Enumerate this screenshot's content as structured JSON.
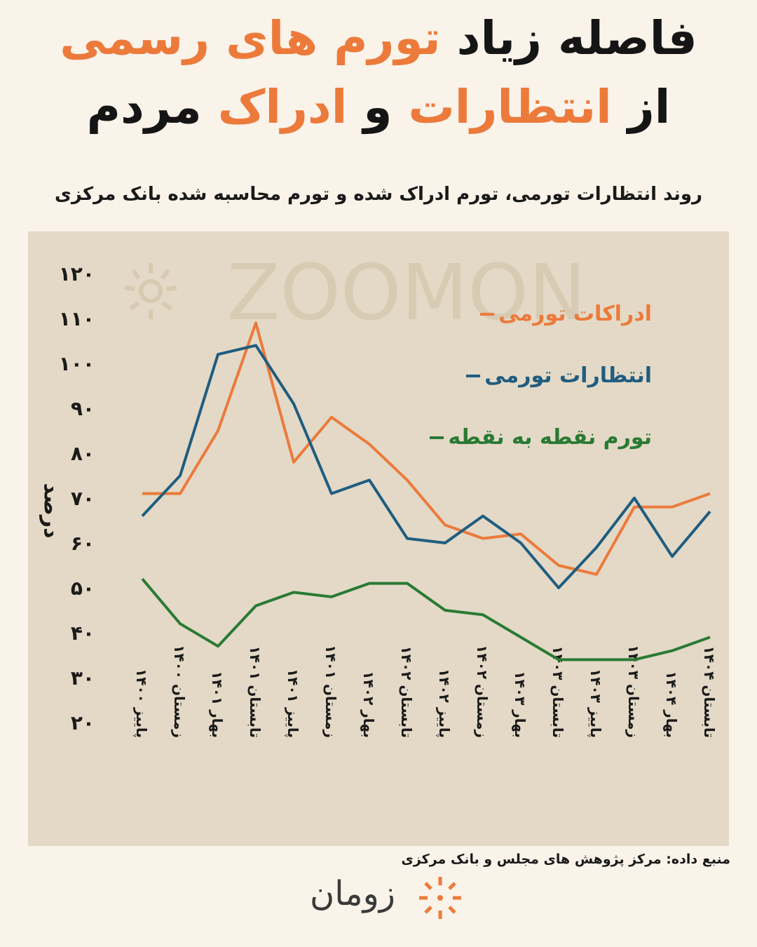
{
  "header": {
    "line1_part1": "فاصله زیاد",
    "line1_part2": "تورم های رسمی",
    "line2_part1": "از",
    "line2_part2": "انتظارات",
    "line2_part3": "و",
    "line2_part4": "ادراک",
    "line2_part5": "مردم"
  },
  "colors": {
    "accent": "#ec7a3b",
    "blue": "#1f5d80",
    "green": "#2a7a33",
    "panel": "#e3d9c6",
    "background": "#faf3ea"
  },
  "watermark_text": "ZOOMON",
  "source_text": "منبع داده: مرکز پژوهش های مجلس و بانک مرکزی",
  "brand_name": "زومان",
  "chart_data": {
    "type": "line",
    "title": "روند انتظارات تورمی، تورم ادراک شده و تورم محاسبه شده بانک مرکزی",
    "ylabel": "درصد",
    "xlabel": "",
    "ylim": [
      20,
      120
    ],
    "yticks": [
      "۲۰",
      "۳۰",
      "۴۰",
      "۵۰",
      "۶۰",
      "۷۰",
      "۸۰",
      "۹۰",
      "۱۰۰",
      "۱۱۰",
      "۱۲۰"
    ],
    "ytick_values": [
      20,
      30,
      40,
      50,
      60,
      70,
      80,
      90,
      100,
      110,
      120
    ],
    "categories": [
      "پاییز ۱۴۰۰",
      "زمستان ۱۴۰۰",
      "بهار ۱۴۰۱",
      "تابستان ۱۴۰۱",
      "پاییز ۱۴۰۱",
      "زمستان ۱۴۰۱",
      "بهار ۱۴۰۲",
      "تابستان ۱۴۰۲",
      "پاییز ۱۴۰۲",
      "زمستان ۱۴۰۲",
      "بهار ۱۴۰۳",
      "تابستان ۱۴۰۳",
      "پاییز ۱۴۰۳",
      "زمستان ۱۴۰۳",
      "بهار ۱۴۰۴",
      "تابستان ۱۴۰۴"
    ],
    "grid": false,
    "legend_position": "top-right",
    "series": [
      {
        "name": "ادراکات تورمی",
        "color": "#ec7a3b",
        "values": [
          71,
          71,
          85,
          109,
          78,
          88,
          82,
          74,
          64,
          61,
          62,
          55,
          53,
          68,
          68,
          71
        ]
      },
      {
        "name": "انتظارات تورمی",
        "color": "#1f5d80",
        "values": [
          66,
          75,
          102,
          104,
          91,
          71,
          74,
          61,
          60,
          66,
          60,
          50,
          59,
          70,
          57,
          67
        ]
      },
      {
        "name": "تورم نقطه به نقطه",
        "color": "#2a7a33",
        "values": [
          52,
          42,
          37,
          46,
          49,
          48,
          51,
          51,
          45,
          44,
          39,
          34,
          34,
          34,
          36,
          39
        ]
      }
    ]
  }
}
